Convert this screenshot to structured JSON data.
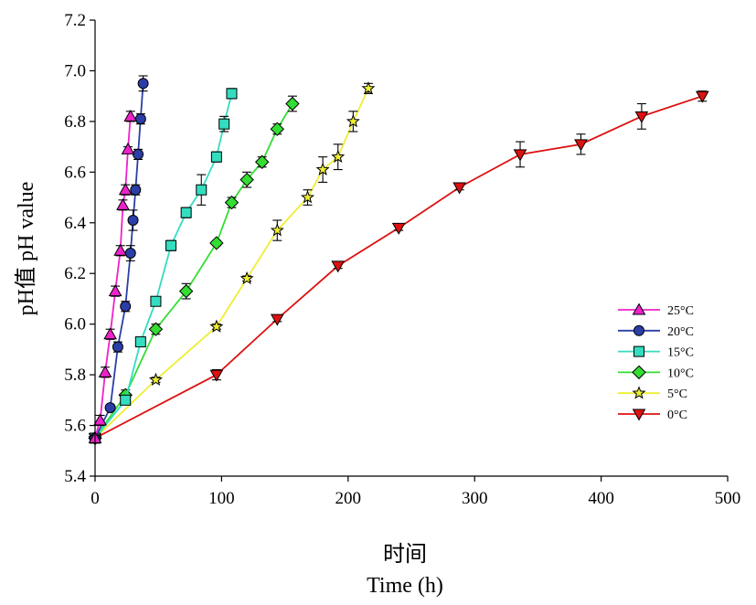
{
  "chart_data": {
    "type": "line",
    "xlabel_cn": "时间",
    "xlabel": "Time (h)",
    "ylabel": "pH值 pH value",
    "xlim": [
      0,
      500
    ],
    "ylim": [
      5.4,
      7.2
    ],
    "x_ticks": [
      0,
      100,
      200,
      300,
      400,
      500
    ],
    "y_ticks": [
      "5.4",
      "5.6",
      "5.8",
      "6.0",
      "6.2",
      "6.4",
      "6.6",
      "6.8",
      "7.0",
      "7.2"
    ],
    "grid": false,
    "legend_position": "right",
    "series": [
      {
        "name": "25°C",
        "color": "#ee22cc",
        "marker": "triangle-up-icon",
        "x": [
          0,
          4,
          8,
          12,
          16,
          20,
          22,
          24,
          26,
          28
        ],
        "y": [
          5.55,
          5.62,
          5.81,
          5.96,
          6.13,
          6.29,
          6.47,
          6.53,
          6.69,
          6.82
        ],
        "err": [
          0.01,
          0.02,
          0.02,
          0.02,
          0.02,
          0.02,
          0.02,
          0.02,
          0.01,
          0.02
        ]
      },
      {
        "name": "20°C",
        "color": "#2b3ea8",
        "marker": "circle-icon",
        "x": [
          0,
          12,
          18,
          24,
          28,
          30,
          32,
          34,
          36,
          38
        ],
        "y": [
          5.55,
          5.67,
          5.91,
          6.07,
          6.28,
          6.41,
          6.53,
          6.67,
          6.81,
          6.95
        ],
        "err": [
          0.01,
          0.01,
          0.02,
          0.02,
          0.03,
          0.04,
          0.02,
          0.02,
          0.02,
          0.03
        ]
      },
      {
        "name": "15°C",
        "color": "#33ddc0",
        "marker": "square-icon",
        "x": [
          0,
          24,
          36,
          48,
          60,
          72,
          84,
          96,
          102,
          108
        ],
        "y": [
          5.55,
          5.7,
          5.93,
          6.09,
          6.31,
          6.44,
          6.53,
          6.66,
          6.79,
          6.91
        ],
        "err": [
          0.01,
          0.01,
          0.01,
          0.01,
          0.02,
          0.02,
          0.06,
          0.02,
          0.03,
          0.02
        ]
      },
      {
        "name": "10°C",
        "color": "#33dd33",
        "marker": "diamond-icon",
        "x": [
          0,
          24,
          48,
          72,
          96,
          108,
          120,
          132,
          144,
          156
        ],
        "y": [
          5.55,
          5.72,
          5.98,
          6.13,
          6.32,
          6.48,
          6.57,
          6.64,
          6.77,
          6.87
        ],
        "err": [
          0.01,
          0.02,
          0.02,
          0.03,
          0.01,
          0.02,
          0.03,
          0.02,
          0.02,
          0.03
        ]
      },
      {
        "name": "5°C",
        "color": "#eeee33",
        "marker": "star-icon",
        "x": [
          0,
          48,
          96,
          120,
          144,
          168,
          180,
          192,
          204,
          216
        ],
        "y": [
          5.55,
          5.78,
          5.99,
          6.18,
          6.37,
          6.5,
          6.61,
          6.66,
          6.8,
          6.93
        ],
        "err": [
          0.01,
          0.01,
          0.01,
          0.01,
          0.04,
          0.03,
          0.05,
          0.05,
          0.04,
          0.02
        ]
      },
      {
        "name": "0°C",
        "color": "#dd1111",
        "marker": "triangle-down-icon",
        "x": [
          0,
          96,
          144,
          192,
          240,
          288,
          336,
          384,
          432,
          480
        ],
        "y": [
          5.55,
          5.8,
          6.02,
          6.23,
          6.38,
          6.54,
          6.67,
          6.71,
          6.82,
          6.9
        ],
        "err": [
          0.01,
          0.02,
          0.01,
          0.01,
          0.01,
          0.01,
          0.05,
          0.04,
          0.05,
          0.02
        ]
      }
    ]
  }
}
